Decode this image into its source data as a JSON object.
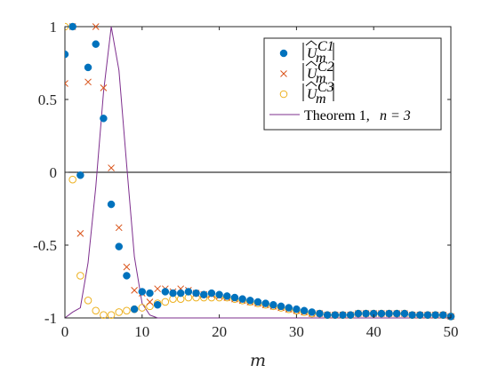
{
  "chart_data": {
    "type": "scatter",
    "xlabel": "m",
    "ylabel": "",
    "xlim": [
      0,
      50
    ],
    "ylim": [
      -1,
      1
    ],
    "x_ticks": [
      "0",
      "10",
      "20",
      "30",
      "40",
      "50"
    ],
    "y_ticks": [
      "-1",
      "-0.5",
      "0",
      "0.5",
      "1"
    ],
    "zero_line": true,
    "grid": false,
    "legend_position": "top-right",
    "colors": {
      "c1": "#0072BD",
      "c2": "#D95319",
      "c3": "#EDB120",
      "theorem": "#7E2F8E"
    },
    "series": [
      {
        "name": "|Û_m^{C1}|",
        "legend_sup": "C1",
        "marker": "filled-circle",
        "x": [
          0,
          1,
          2,
          3,
          4,
          5,
          6,
          7,
          8,
          9,
          10,
          11,
          12,
          13,
          14,
          15,
          16,
          17,
          18,
          19,
          20,
          21,
          22,
          23,
          24,
          25,
          26,
          27,
          28,
          29,
          30,
          31,
          32,
          33,
          34,
          35,
          36,
          37,
          38,
          39,
          40,
          41,
          42,
          43,
          44,
          45,
          46,
          47,
          48,
          49,
          50
        ],
        "y": [
          0.81,
          1.0,
          -0.02,
          0.72,
          0.88,
          0.37,
          -0.22,
          -0.51,
          -0.71,
          -0.94,
          -0.82,
          -0.83,
          -0.91,
          -0.82,
          -0.83,
          -0.83,
          -0.82,
          -0.83,
          -0.84,
          -0.83,
          -0.84,
          -0.85,
          -0.86,
          -0.87,
          -0.88,
          -0.89,
          -0.9,
          -0.91,
          -0.92,
          -0.93,
          -0.94,
          -0.95,
          -0.96,
          -0.97,
          -0.98,
          -0.98,
          -0.98,
          -0.98,
          -0.97,
          -0.97,
          -0.97,
          -0.97,
          -0.97,
          -0.97,
          -0.97,
          -0.98,
          -0.98,
          -0.98,
          -0.98,
          -0.98,
          -0.99
        ]
      },
      {
        "name": "|Û_m^{C2}|",
        "legend_sup": "C2",
        "marker": "cross",
        "x": [
          0,
          1,
          2,
          3,
          4,
          5,
          6,
          7,
          8,
          9,
          10,
          11,
          12,
          13,
          14,
          15,
          16,
          17,
          18,
          19,
          20,
          21,
          22,
          23,
          24,
          25,
          26,
          27,
          28,
          29,
          30,
          31,
          32,
          33,
          34,
          35,
          36,
          37,
          38,
          39,
          40,
          41,
          42,
          43,
          44,
          45,
          46,
          47,
          48,
          49,
          50
        ],
        "y": [
          0.61,
          1.0,
          -0.42,
          0.62,
          1.0,
          0.58,
          0.03,
          -0.38,
          -0.65,
          -0.81,
          -0.83,
          -0.89,
          -0.8,
          -0.8,
          -0.82,
          -0.8,
          -0.81,
          -0.83,
          -0.84,
          -0.84,
          -0.85,
          -0.86,
          -0.87,
          -0.88,
          -0.89,
          -0.9,
          -0.91,
          -0.92,
          -0.93,
          -0.94,
          -0.95,
          -0.96,
          -0.97,
          -0.97,
          -0.98,
          -0.98,
          -0.98,
          -0.98,
          -0.97,
          -0.97,
          -0.97,
          -0.97,
          -0.97,
          -0.97,
          -0.97,
          -0.98,
          -0.98,
          -0.98,
          -0.98,
          -0.98,
          -0.99
        ]
      },
      {
        "name": "|Û_m^{C3}|",
        "legend_sup": "C3",
        "marker": "open-circle",
        "x": [
          0,
          1,
          2,
          3,
          4,
          5,
          6,
          7,
          8,
          9,
          10,
          11,
          12,
          13,
          14,
          15,
          16,
          17,
          18,
          19,
          20,
          21,
          22,
          23,
          24,
          25,
          26,
          27,
          28,
          29,
          30,
          31,
          32,
          33,
          34,
          35,
          36,
          37,
          38,
          39,
          40,
          41,
          42,
          43,
          44,
          45,
          46,
          47,
          48,
          49,
          50
        ],
        "y": [
          1.0,
          -0.05,
          -0.71,
          -0.88,
          -0.95,
          -0.98,
          -0.98,
          -0.96,
          -0.95,
          -0.94,
          -0.93,
          -0.92,
          -0.9,
          -0.89,
          -0.87,
          -0.87,
          -0.86,
          -0.86,
          -0.86,
          -0.86,
          -0.86,
          -0.86,
          -0.87,
          -0.88,
          -0.89,
          -0.9,
          -0.91,
          -0.92,
          -0.93,
          -0.94,
          -0.95,
          -0.96,
          -0.97,
          -0.97,
          -0.98,
          -0.98,
          -0.98,
          -0.98,
          -0.97,
          -0.97,
          -0.97,
          -0.97,
          -0.97,
          -0.97,
          -0.97,
          -0.98,
          -0.98,
          -0.98,
          -0.98,
          -0.98,
          -0.99
        ]
      },
      {
        "name": "Theorem 1, n = 3",
        "legend_text": "Theorem 1, ",
        "legend_math": "n = 3",
        "marker": "line",
        "x": [
          0,
          1,
          2,
          3,
          4,
          5,
          6,
          7,
          8,
          9,
          10,
          11,
          12,
          13,
          14,
          15,
          20,
          30,
          40,
          50
        ],
        "y": [
          -1.0,
          -0.96,
          -0.93,
          -0.62,
          -0.1,
          0.55,
          1.0,
          0.7,
          0.05,
          -0.58,
          -0.9,
          -0.98,
          -1.0,
          -1.0,
          -1.0,
          -1.0,
          -1.0,
          -1.0,
          -1.0,
          -1.0
        ]
      }
    ]
  }
}
